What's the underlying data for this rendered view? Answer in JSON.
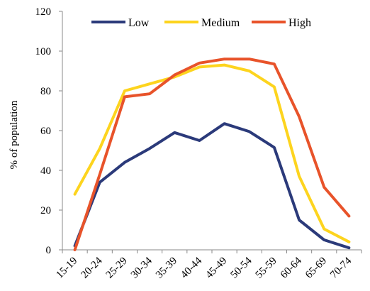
{
  "chart_data": {
    "type": "line",
    "title": "",
    "xlabel": "",
    "ylabel": "% of population",
    "ylim": [
      0,
      120
    ],
    "yticks": [
      0,
      20,
      40,
      60,
      80,
      100,
      120
    ],
    "grid": false,
    "legend_position": "top",
    "categories": [
      "15-19",
      "20-24",
      "25-29",
      "30-34",
      "35-39",
      "40-44",
      "45-49",
      "50-54",
      "55-59",
      "60-64",
      "65-69",
      "70-74"
    ],
    "series": [
      {
        "name": "Low",
        "color": "#2b3a7a",
        "values": [
          2,
          34,
          44,
          51,
          59,
          55,
          63.5,
          59.5,
          51.5,
          15,
          5,
          1
        ]
      },
      {
        "name": "Medium",
        "color": "#fdd41e",
        "values": [
          28,
          51,
          80,
          83.5,
          87,
          92,
          93,
          90,
          82,
          37,
          10.5,
          4
        ]
      },
      {
        "name": "High",
        "color": "#e8532a",
        "values": [
          0,
          38,
          77,
          78.5,
          88,
          94,
          96,
          96,
          93.5,
          67,
          31.5,
          17
        ]
      }
    ]
  }
}
